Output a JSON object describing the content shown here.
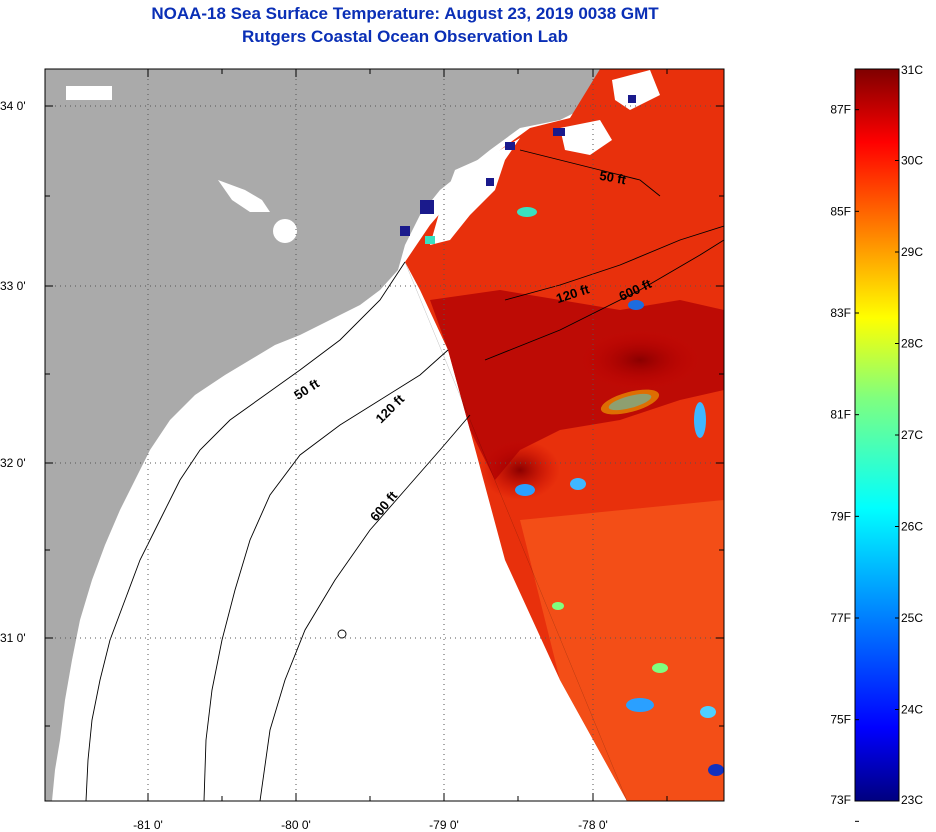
{
  "title": "NOAA-18 Sea Surface Temperature:  August 23, 2019 0038 GMT",
  "subtitle": "Rutgers Coastal Ocean Observation Lab",
  "lat_ticks": [
    "34 0'",
    "33 0'",
    "32 0'",
    "31 0'"
  ],
  "lon_ticks": [
    "-81 0'",
    "-80 0'",
    "-79 0'",
    "-78 0'"
  ],
  "contours": {
    "upper_50": "50 ft",
    "upper_120": "120 ft",
    "upper_600": "600 ft",
    "lower_50": "50 ft",
    "lower_120": "120 ft",
    "lower_600": "600 ft"
  },
  "colorbar": {
    "fahrenheit_labels": [
      "87F",
      "85F",
      "83F",
      "81F",
      "79F",
      "77F",
      "75F",
      "73F"
    ],
    "celsius_labels": [
      "31C",
      "30C",
      "29C",
      "28C",
      "27C",
      "26C",
      "25C",
      "24C",
      "23C"
    ],
    "range_c": [
      23,
      31
    ],
    "colors": [
      "#00007f",
      "#0000ff",
      "#007fff",
      "#00ffff",
      "#7fff7f",
      "#ffff00",
      "#ff7f00",
      "#ff0000",
      "#7f0000"
    ]
  },
  "colors": {
    "title": "#0a2fb6",
    "land": "#aaaaaa",
    "ocean_nodata": "#ffffff",
    "cloud": "#1a1a8c"
  }
}
